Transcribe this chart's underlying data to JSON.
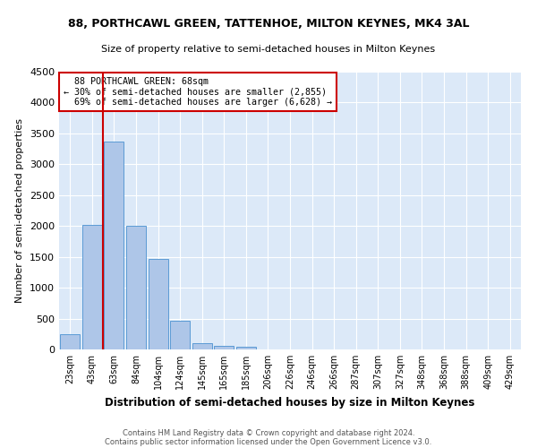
{
  "title1": "88, PORTHCAWL GREEN, TATTENHOE, MILTON KEYNES, MK4 3AL",
  "title2": "Size of property relative to semi-detached houses in Milton Keynes",
  "xlabel": "Distribution of semi-detached houses by size in Milton Keynes",
  "ylabel": "Number of semi-detached properties",
  "footer1": "Contains HM Land Registry data © Crown copyright and database right 2024.",
  "footer2": "Contains public sector information licensed under the Open Government Licence v3.0.",
  "bar_labels": [
    "23sqm",
    "43sqm",
    "63sqm",
    "84sqm",
    "104sqm",
    "124sqm",
    "145sqm",
    "165sqm",
    "185sqm",
    "206sqm",
    "226sqm",
    "246sqm",
    "266sqm",
    "287sqm",
    "307sqm",
    "327sqm",
    "348sqm",
    "368sqm",
    "388sqm",
    "409sqm",
    "429sqm"
  ],
  "bar_values": [
    250,
    2020,
    3370,
    2010,
    1460,
    470,
    100,
    55,
    45,
    0,
    0,
    0,
    0,
    0,
    0,
    0,
    0,
    0,
    0,
    0,
    0
  ],
  "bar_color": "#aec6e8",
  "bar_edge_color": "#5b9bd5",
  "background_color": "#dce9f8",
  "grid_color": "#ffffff",
  "property_label": "88 PORTHCAWL GREEN: 68sqm",
  "pct_smaller": 30,
  "n_smaller": 2855,
  "pct_larger": 69,
  "n_larger": 6628,
  "vline_x_index": 2,
  "vline_color": "#cc0000",
  "annotation_box_color": "#cc0000",
  "ylim": [
    0,
    4500
  ],
  "yticks": [
    0,
    500,
    1000,
    1500,
    2000,
    2500,
    3000,
    3500,
    4000,
    4500
  ]
}
